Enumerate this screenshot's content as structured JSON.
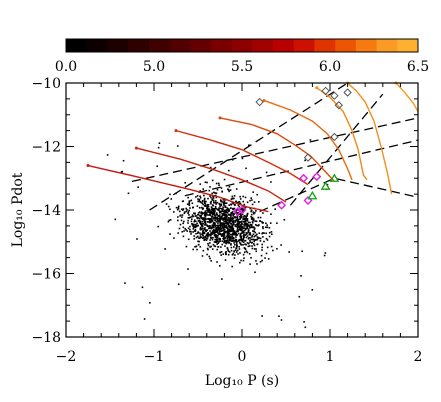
{
  "chart_data": {
    "type": "scatter",
    "xlabel": "Log₁₀ P (s)",
    "ylabel": "Log₁₀ Pdot",
    "xlim": [
      -2,
      2
    ],
    "ylim": [
      -18,
      -10
    ],
    "x_ticks": [
      "−2",
      "−1",
      "0",
      "1",
      "2"
    ],
    "y_ticks": [
      "−18",
      "−16",
      "−14",
      "−12",
      "−10"
    ],
    "colorbar": {
      "range": [
        0,
        6.5
      ],
      "tick_labels": [
        "0.0",
        "5.0",
        "5.5",
        "6.0",
        "6.5"
      ],
      "colors": [
        "#000000",
        "#0c0000",
        "#1d0000",
        "#2e0000",
        "#3f0000",
        "#520000",
        "#650000",
        "#7a0000",
        "#8e0000",
        "#a30000",
        "#b80000",
        "#cc1100",
        "#e03300",
        "#ee5500",
        "#f57a10",
        "#fb9a25",
        "#ffb030"
      ]
    },
    "tracks": [
      {
        "color": "#c41a10",
        "points": [
          [
            -1.75,
            -12.6
          ],
          [
            -1.2,
            -12.95
          ],
          [
            -0.6,
            -13.35
          ],
          [
            -0.25,
            -13.6
          ],
          [
            0.05,
            -13.9
          ],
          [
            0.3,
            -14.05
          ]
        ]
      },
      {
        "color": "#c8240e",
        "points": [
          [
            -1.2,
            -12.05
          ],
          [
            -0.7,
            -12.4
          ],
          [
            -0.3,
            -12.75
          ],
          [
            0.0,
            -13.05
          ],
          [
            0.3,
            -13.4
          ],
          [
            0.5,
            -13.75
          ]
        ]
      },
      {
        "color": "#d0300c",
        "points": [
          [
            -0.75,
            -11.5
          ],
          [
            -0.35,
            -11.8
          ],
          [
            0.0,
            -12.1
          ],
          [
            0.3,
            -12.5
          ],
          [
            0.55,
            -12.85
          ],
          [
            0.75,
            -13.2
          ]
        ]
      },
      {
        "color": "#de4a0a",
        "points": [
          [
            -0.25,
            -11.1
          ],
          [
            0.1,
            -11.3
          ],
          [
            0.4,
            -11.6
          ],
          [
            0.6,
            -11.95
          ],
          [
            0.78,
            -12.3
          ],
          [
            0.95,
            -12.8
          ],
          [
            1.05,
            -13.1
          ]
        ]
      },
      {
        "color": "#e86a10",
        "points": [
          [
            0.25,
            -10.55
          ],
          [
            0.55,
            -10.85
          ],
          [
            0.8,
            -11.2
          ],
          [
            0.97,
            -11.6
          ],
          [
            1.1,
            -12.1
          ],
          [
            1.2,
            -12.7
          ],
          [
            1.25,
            -13.05
          ]
        ]
      },
      {
        "color": "#f08a18",
        "points": [
          [
            0.85,
            -10.15
          ],
          [
            1.0,
            -10.45
          ],
          [
            1.15,
            -10.9
          ],
          [
            1.25,
            -11.5
          ],
          [
            1.32,
            -12.1
          ],
          [
            1.38,
            -12.9
          ],
          [
            1.42,
            -13.05
          ]
        ]
      },
      {
        "color": "#f48e1a",
        "points": [
          [
            1.2,
            -10.0
          ],
          [
            1.3,
            -10.25
          ],
          [
            1.4,
            -10.6
          ],
          [
            1.5,
            -11.2
          ],
          [
            1.58,
            -12.0
          ],
          [
            1.65,
            -12.8
          ],
          [
            1.7,
            -13.5
          ]
        ]
      },
      {
        "color": "#f49a25",
        "points": [
          [
            1.75,
            -10.0
          ],
          [
            1.85,
            -10.3
          ],
          [
            1.95,
            -10.65
          ],
          [
            2.0,
            -10.9
          ]
        ]
      }
    ],
    "dashed_lines": [
      {
        "points": [
          [
            -1.25,
            -13.1
          ],
          [
            2.0,
            -11.1
          ]
        ]
      },
      {
        "points": [
          [
            -0.65,
            -13.55
          ],
          [
            2.0,
            -11.8
          ]
        ]
      },
      {
        "points": [
          [
            0.2,
            -14.05
          ],
          [
            1.05,
            -13.0
          ],
          [
            2.0,
            -13.6
          ]
        ]
      },
      {
        "points": [
          [
            0.55,
            -13.85
          ],
          [
            1.6,
            -10.35
          ]
        ]
      },
      {
        "points": [
          [
            -1.05,
            -14.0
          ],
          [
            1.2,
            -10.0
          ]
        ]
      }
    ],
    "magenta_diamonds": [
      [
        -0.05,
        -14.05
      ],
      [
        0.0,
        -14.0
      ],
      [
        0.45,
        -13.85
      ],
      [
        0.7,
        -13.0
      ],
      [
        0.75,
        -13.7
      ],
      [
        0.85,
        -12.95
      ]
    ],
    "green_triangles": [
      [
        0.8,
        -13.55
      ],
      [
        0.95,
        -13.25
      ],
      [
        1.05,
        -13.0
      ]
    ],
    "open_diamonds": [
      [
        0.2,
        -10.6
      ],
      [
        0.95,
        -10.25
      ],
      [
        1.05,
        -10.4
      ],
      [
        1.1,
        -10.7
      ],
      [
        1.2,
        -10.3
      ],
      [
        1.05,
        -11.7
      ],
      [
        0.75,
        -12.35
      ]
    ]
  }
}
